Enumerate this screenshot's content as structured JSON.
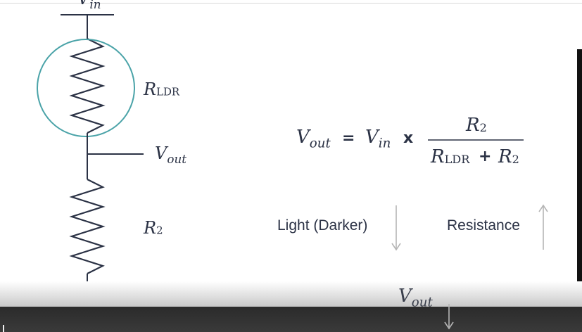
{
  "circuit": {
    "vin_label": "V",
    "vin_sub": "in",
    "rldr_main": "R",
    "rldr_sub": "LDR",
    "vout_main": "V",
    "vout_sub": "out",
    "r2_main": "R",
    "r2_sub": "2"
  },
  "formula": {
    "lhs_main": "V",
    "lhs_sub": "out",
    "equals": "=",
    "vin_main": "V",
    "vin_sub": "in",
    "times": "x",
    "num_main": "R",
    "num_sub": "2",
    "den_r1_main": "R",
    "den_r1_sub": "LDR",
    "plus": "+",
    "den_r2_main": "R",
    "den_r2_sub": "2"
  },
  "relations": {
    "light_label": "Light (Darker)",
    "light_direction": "down",
    "resistance_label": "Resistance",
    "resistance_direction": "up",
    "vout_main": "V",
    "vout_sub": "out",
    "vout_direction": "down"
  },
  "colors": {
    "ink": "#2b3245",
    "ldr_circle": "#4aa3a8",
    "arrow_gray": "#b5b5b5"
  }
}
